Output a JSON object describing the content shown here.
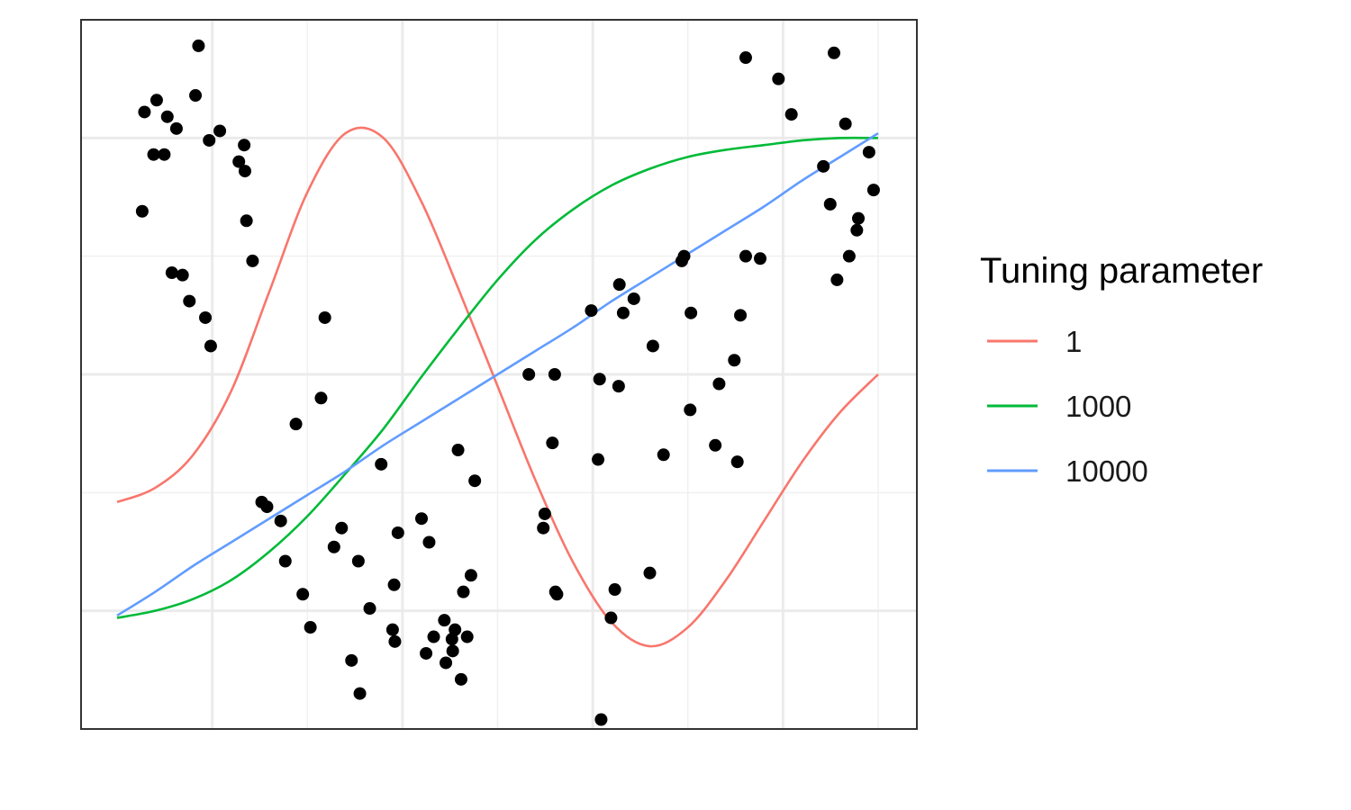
{
  "chart_data": {
    "type": "scatter",
    "title": "",
    "xlabel": "",
    "ylabel": "",
    "xlim": [
      0,
      1
    ],
    "ylim": [
      -1.5,
      1.5
    ],
    "grid": true,
    "major_x": [
      0.125,
      0.375,
      0.625,
      0.875
    ],
    "minor_x": [
      0.25,
      0.5,
      0.75,
      1.0
    ],
    "major_y": [
      -1,
      0,
      1
    ],
    "minor_y": [
      -0.5,
      0.5
    ],
    "legend": {
      "title": "Tuning parameter",
      "position": "right"
    },
    "points": {
      "x": [
        0.033,
        0.036,
        0.048,
        0.052,
        0.062,
        0.066,
        0.072,
        0.078,
        0.086,
        0.095,
        0.103,
        0.107,
        0.116,
        0.121,
        0.123,
        0.135,
        0.16,
        0.167,
        0.168,
        0.17,
        0.178,
        0.19,
        0.197,
        0.215,
        0.221,
        0.235,
        0.244,
        0.254,
        0.268,
        0.273,
        0.285,
        0.295,
        0.308,
        0.317,
        0.319,
        0.332,
        0.347,
        0.362,
        0.364,
        0.365,
        0.369,
        0.4,
        0.406,
        0.41,
        0.416,
        0.43,
        0.432,
        0.44,
        0.441,
        0.444,
        0.448,
        0.452,
        0.455,
        0.46,
        0.465,
        0.47,
        0.541,
        0.56,
        0.562,
        0.572,
        0.575,
        0.576,
        0.578,
        0.623,
        0.632,
        0.634,
        0.636,
        0.649,
        0.654,
        0.659,
        0.66,
        0.665,
        0.679,
        0.7,
        0.704,
        0.718,
        0.742,
        0.745,
        0.753,
        0.754,
        0.786,
        0.791,
        0.811,
        0.815,
        0.819,
        0.826,
        0.826,
        0.845,
        0.869,
        0.886,
        0.928,
        0.937,
        0.942,
        0.946,
        0.957,
        0.962,
        0.972,
        0.974,
        0.988,
        0.994
      ],
      "y": [
        0.69,
        1.11,
        0.93,
        1.16,
        0.93,
        1.09,
        0.43,
        1.04,
        0.42,
        0.31,
        1.18,
        1.39,
        0.24,
        0.99,
        0.12,
        1.03,
        0.9,
        0.97,
        0.86,
        0.65,
        0.48,
        -0.54,
        -0.56,
        -0.62,
        -0.79,
        -0.21,
        -0.93,
        -1.07,
        -0.1,
        0.24,
        -0.73,
        -0.65,
        -1.21,
        -0.79,
        -1.35,
        -0.99,
        -0.38,
        -1.08,
        -0.89,
        -1.13,
        -0.67,
        -0.61,
        -1.18,
        -0.71,
        -1.11,
        -1.04,
        -1.22,
        -1.12,
        -1.17,
        -1.08,
        -0.32,
        -1.29,
        -0.92,
        -1.11,
        -0.85,
        -0.45,
        0.0,
        -0.65,
        -0.59,
        -0.29,
        0.0,
        -0.92,
        -0.93,
        0.27,
        -0.36,
        -0.02,
        -1.46,
        -1.03,
        -0.91,
        -0.05,
        0.38,
        0.26,
        0.32,
        -0.84,
        0.12,
        -0.34,
        0.48,
        0.5,
        -0.15,
        0.26,
        -0.3,
        -0.04,
        0.06,
        -0.37,
        0.25,
        1.34,
        0.5,
        0.49,
        1.25,
        1.1,
        0.88,
        0.72,
        1.36,
        0.4,
        1.06,
        0.5,
        0.61,
        0.66,
        0.94,
        0.78
      ]
    },
    "series": [
      {
        "name": "1",
        "color": "#F8766D",
        "x": [
          0.0,
          0.05,
          0.1,
          0.15,
          0.2,
          0.25,
          0.3,
          0.35,
          0.4,
          0.45,
          0.5,
          0.55,
          0.6,
          0.65,
          0.7,
          0.75,
          0.8,
          0.85,
          0.9,
          0.95,
          1.0
        ],
        "y": [
          -0.54,
          -0.48,
          -0.34,
          -0.07,
          0.35,
          0.77,
          1.02,
          1.0,
          0.73,
          0.35,
          -0.05,
          -0.45,
          -0.8,
          -1.05,
          -1.15,
          -1.07,
          -0.87,
          -0.62,
          -0.37,
          -0.16,
          0.0
        ]
      },
      {
        "name": "1000",
        "color": "#00BA38",
        "x": [
          0.0,
          0.05,
          0.1,
          0.15,
          0.2,
          0.25,
          0.3,
          0.35,
          0.4,
          0.45,
          0.5,
          0.55,
          0.6,
          0.65,
          0.7,
          0.75,
          0.8,
          0.85,
          0.9,
          0.95,
          1.0
        ],
        "y": [
          -1.03,
          -1.0,
          -0.95,
          -0.87,
          -0.75,
          -0.6,
          -0.42,
          -0.23,
          -0.01,
          0.2,
          0.4,
          0.57,
          0.7,
          0.8,
          0.87,
          0.92,
          0.95,
          0.97,
          0.99,
          1.0,
          1.0
        ]
      },
      {
        "name": "10000",
        "color": "#619CFF",
        "x": [
          0.0,
          0.05,
          0.1,
          0.15,
          0.2,
          0.25,
          0.3,
          0.35,
          0.4,
          0.45,
          0.5,
          0.55,
          0.6,
          0.65,
          0.7,
          0.75,
          0.8,
          0.85,
          0.9,
          0.95,
          1.0
        ],
        "y": [
          -1.02,
          -0.92,
          -0.81,
          -0.71,
          -0.61,
          -0.51,
          -0.41,
          -0.3,
          -0.2,
          -0.1,
          0.0,
          0.1,
          0.2,
          0.31,
          0.41,
          0.51,
          0.61,
          0.71,
          0.82,
          0.92,
          1.02
        ]
      }
    ]
  }
}
